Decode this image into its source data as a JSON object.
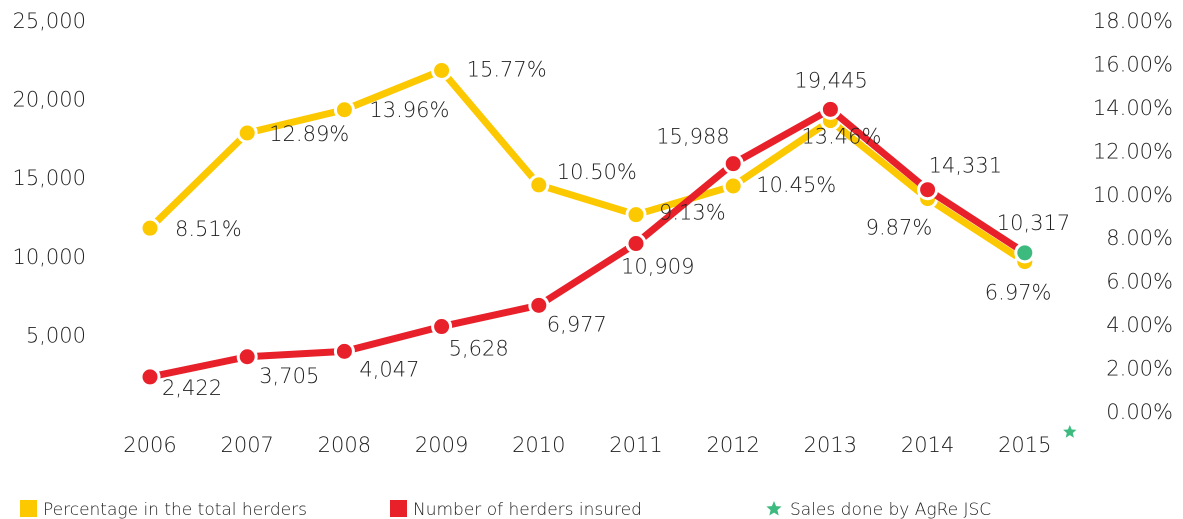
{
  "chart_data": {
    "type": "line",
    "categories": [
      "2006",
      "2007",
      "2008",
      "2009",
      "2010",
      "2011",
      "2012",
      "2013",
      "2014",
      "2015"
    ],
    "series": [
      {
        "name": "Percentage in the total herders",
        "color": "#fcc800",
        "axis": "y2",
        "values": [
          8.51,
          12.89,
          13.96,
          15.77,
          10.5,
          9.13,
          10.45,
          13.46,
          9.87,
          6.97
        ],
        "value_labels": [
          "8.51%",
          "12.89%",
          "13.96%",
          "15.77%",
          "10.50%",
          "9.13%",
          "10.45%",
          "13.46%",
          "9.87%",
          "6.97%"
        ]
      },
      {
        "name": "Number of herders insured",
        "color": "#e8202a",
        "values": [
          2422,
          3705,
          4047,
          5628,
          6977,
          10909,
          15988,
          19445,
          14331,
          10317
        ],
        "value_labels": [
          "2,422",
          "3,705",
          "4,047",
          "5,628",
          "6,977",
          "10,909",
          "15,988",
          "19,445",
          "14,331",
          "10,317"
        ]
      }
    ],
    "highlight": {
      "label": "Sales done by AgRe JSC",
      "color": "#3dbb7f",
      "index": 9
    },
    "ylim": [
      0,
      25000
    ],
    "yticks": [
      {
        "value": 5000,
        "label": "5,000"
      },
      {
        "value": 10000,
        "label": "10,000"
      },
      {
        "value": 15000,
        "label": "15,000"
      },
      {
        "value": 20000,
        "label": "20,000"
      },
      {
        "value": 25000,
        "label": "25,000"
      }
    ],
    "y2lim": [
      0,
      18
    ],
    "y2ticks": [
      {
        "value": 0,
        "label": "0.00%"
      },
      {
        "value": 2,
        "label": "2.00%"
      },
      {
        "value": 4,
        "label": "4.00%"
      },
      {
        "value": 6,
        "label": "6.00%"
      },
      {
        "value": 8,
        "label": "8.00%"
      },
      {
        "value": 10,
        "label": "10.00%"
      },
      {
        "value": 12,
        "label": "12.00%"
      },
      {
        "value": 14,
        "label": "14.00%"
      },
      {
        "value": 16,
        "label": "16.00%"
      },
      {
        "value": 18,
        "label": "18.00%"
      }
    ],
    "grid": false
  }
}
